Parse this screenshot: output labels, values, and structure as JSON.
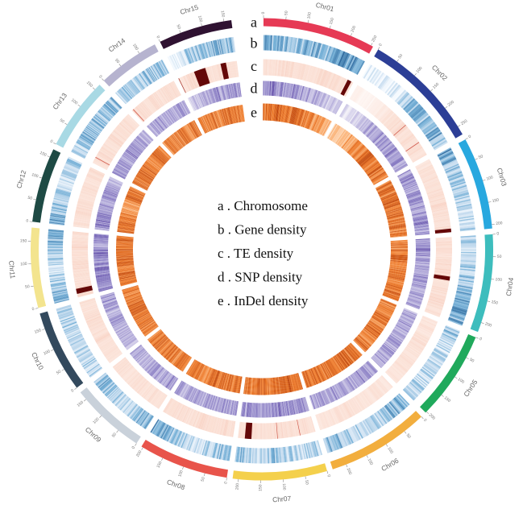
{
  "chart_data": {
    "type": "heatmap",
    "layout": "circular",
    "title": "",
    "legend_placement": "center",
    "track_letters": [
      "a",
      "b",
      "c",
      "d",
      "e"
    ],
    "legend": [
      "a . Chromosome",
      "b . Gene density",
      "c . TE density",
      "d . SNP density",
      "e . InDel density"
    ],
    "tracks": [
      {
        "key": "gene",
        "color_scale": [
          [
            0,
            "#f7fbff"
          ],
          [
            0.35,
            "#c9def0"
          ],
          [
            0.65,
            "#74afd6"
          ],
          [
            1,
            "#2a6499"
          ]
        ]
      },
      {
        "key": "te",
        "color_scale": [
          [
            0,
            "#ffffff"
          ],
          [
            0.3,
            "#fbe0d5"
          ],
          [
            0.55,
            "#f1b09c"
          ],
          [
            0.75,
            "#c8463a"
          ],
          [
            1,
            "#640808"
          ]
        ]
      },
      {
        "key": "snp",
        "color_scale": [
          [
            0,
            "#f3f1f8"
          ],
          [
            0.4,
            "#c3bde2"
          ],
          [
            0.7,
            "#8a7ec4"
          ],
          [
            1,
            "#4a2f96"
          ]
        ]
      },
      {
        "key": "indel",
        "color_scale": [
          [
            0,
            "#fff2e5"
          ],
          [
            0.4,
            "#fbb57b"
          ],
          [
            0.7,
            "#ee7c2d"
          ],
          [
            1,
            "#bb430b"
          ]
        ]
      }
    ],
    "chromosomes": [
      {
        "name": "Chr01",
        "length": 255,
        "color": "#e63a55",
        "ticks": [
          0,
          50,
          100,
          150,
          200,
          250
        ],
        "gene": [
          0.7,
          0.6,
          0.55,
          0.5,
          0.55,
          0.6,
          0.55,
          0.6,
          0.7,
          0.75,
          0.7,
          0.55
        ],
        "te": [
          0.3,
          0.28,
          0.3,
          0.32,
          0.3,
          0.3,
          0.28,
          0.3,
          0.32,
          0.3,
          0.3,
          0.28
        ],
        "snp": [
          0.6,
          0.65,
          0.6,
          0.55,
          0.6,
          0.55,
          0.5,
          0.45,
          0.4,
          0.35,
          0.3,
          0.3
        ],
        "indel": [
          0.7,
          0.75,
          0.8,
          0.75,
          0.7,
          0.75,
          0.7,
          0.65,
          0.6,
          0.55,
          0.45,
          0.4
        ]
      },
      {
        "name": "Chr02",
        "length": 270,
        "color": "#2c3e96",
        "ticks": [
          0,
          50,
          100,
          150,
          200,
          250
        ],
        "gene": [
          0.1,
          0.08,
          0.1,
          0.12,
          0.15,
          0.4,
          0.55,
          0.6,
          0.5,
          0.55,
          0.6,
          0.45
        ],
        "te": [
          0.12,
          0.1,
          0.12,
          0.15,
          0.22,
          0.26,
          0.3,
          0.3,
          0.28,
          0.3,
          0.3,
          0.28
        ],
        "snp": [
          0.15,
          0.2,
          0.25,
          0.35,
          0.45,
          0.5,
          0.55,
          0.5,
          0.55,
          0.6,
          0.55,
          0.5
        ],
        "indel": [
          0.3,
          0.35,
          0.4,
          0.5,
          0.6,
          0.65,
          0.7,
          0.75,
          0.7,
          0.75,
          0.7,
          0.7
        ]
      },
      {
        "name": "Chr03",
        "length": 209,
        "color": "#28a8df",
        "ticks": [
          0,
          50,
          100,
          150,
          200
        ],
        "gene": [
          0.7,
          0.65,
          0.55,
          0.5,
          0.45,
          0.4,
          0.4,
          0.35,
          0.4,
          0.35,
          0.3,
          0.35
        ],
        "te": [
          0.26,
          0.28,
          0.3,
          0.3,
          0.28,
          0.3,
          0.3,
          0.32,
          0.3,
          0.3,
          0.28,
          0.3
        ],
        "snp": [
          0.55,
          0.6,
          0.55,
          0.5,
          0.55,
          0.6,
          0.55,
          0.5,
          0.55,
          0.6,
          0.6,
          0.55
        ],
        "indel": [
          0.7,
          0.75,
          0.7,
          0.75,
          0.8,
          0.75,
          0.7,
          0.75,
          0.7,
          0.75,
          0.7,
          0.7
        ]
      },
      {
        "name": "Chr04",
        "length": 222,
        "color": "#3dbdbd",
        "ticks": [
          0,
          50,
          100,
          150,
          200
        ],
        "gene": [
          0.35,
          0.3,
          0.3,
          0.35,
          0.4,
          0.45,
          0.5,
          0.55,
          0.6,
          0.65,
          0.7,
          0.6
        ],
        "te": [
          0.3,
          0.3,
          0.28,
          0.3,
          0.32,
          0.3,
          0.28,
          0.3,
          0.3,
          0.32,
          0.3,
          0.28
        ],
        "snp": [
          0.6,
          0.65,
          0.6,
          0.55,
          0.5,
          0.55,
          0.6,
          0.55,
          0.5,
          0.5,
          0.45,
          0.5
        ],
        "indel": [
          0.75,
          0.7,
          0.75,
          0.8,
          0.75,
          0.7,
          0.75,
          0.7,
          0.65,
          0.7,
          0.75,
          0.7
        ]
      },
      {
        "name": "Chr05",
        "length": 203,
        "color": "#20a95c",
        "ticks": [
          0,
          50,
          100,
          150,
          200
        ],
        "gene": [
          0.5,
          0.45,
          0.3,
          0.3,
          0.35,
          0.3,
          0.3,
          0.35,
          0.3,
          0.35,
          0.4,
          0.35
        ],
        "te": [
          0.26,
          0.28,
          0.26,
          0.28,
          0.3,
          0.28,
          0.26,
          0.28,
          0.3,
          0.28,
          0.26,
          0.28
        ],
        "snp": [
          0.45,
          0.5,
          0.55,
          0.5,
          0.45,
          0.5,
          0.55,
          0.5,
          0.5,
          0.55,
          0.5,
          0.45
        ],
        "indel": [
          0.7,
          0.65,
          0.7,
          0.75,
          0.7,
          0.65,
          0.7,
          0.75,
          0.7,
          0.65,
          0.7,
          0.7
        ]
      },
      {
        "name": "Chr06",
        "length": 232,
        "color": "#f2ae3e",
        "ticks": [
          0,
          50,
          100,
          150,
          200
        ],
        "gene": [
          0.6,
          0.6,
          0.55,
          0.45,
          0.35,
          0.3,
          0.3,
          0.35,
          0.4,
          0.5,
          0.55,
          0.6
        ],
        "te": [
          0.25,
          0.26,
          0.28,
          0.26,
          0.25,
          0.26,
          0.28,
          0.3,
          0.28,
          0.26,
          0.25,
          0.26
        ],
        "snp": [
          0.5,
          0.55,
          0.6,
          0.55,
          0.5,
          0.45,
          0.5,
          0.55,
          0.5,
          0.45,
          0.5,
          0.55
        ],
        "indel": [
          0.75,
          0.7,
          0.75,
          0.8,
          0.75,
          0.7,
          0.75,
          0.7,
          0.75,
          0.8,
          0.75,
          0.7
        ]
      },
      {
        "name": "Chr07",
        "length": 213,
        "color": "#f4d04c",
        "ticks": [
          0,
          50,
          100,
          150,
          200
        ],
        "gene": [
          0.35,
          0.4,
          0.35,
          0.35,
          0.4,
          0.5,
          0.5,
          0.45,
          0.4,
          0.35,
          0.5,
          0.55
        ],
        "te": [
          0.28,
          0.3,
          0.3,
          0.28,
          0.3,
          0.32,
          0.3,
          0.28,
          0.3,
          0.3,
          0.32,
          0.3
        ],
        "snp": [
          0.6,
          0.65,
          0.6,
          0.55,
          0.6,
          0.65,
          0.6,
          0.55,
          0.5,
          0.55,
          0.6,
          0.55
        ],
        "indel": [
          0.7,
          0.75,
          0.8,
          0.75,
          0.7,
          0.75,
          0.7,
          0.75,
          0.8,
          0.75,
          0.7,
          0.75
        ]
      },
      {
        "name": "Chr08",
        "length": 204,
        "color": "#e8544b",
        "ticks": [
          0,
          50,
          100,
          150,
          200
        ],
        "gene": [
          0.6,
          0.5,
          0.4,
          0.35,
          0.3,
          0.3,
          0.35,
          0.35,
          0.4,
          0.5,
          0.6,
          0.65
        ],
        "te": [
          0.3,
          0.32,
          0.3,
          0.28,
          0.3,
          0.32,
          0.3,
          0.28,
          0.3,
          0.3,
          0.28,
          0.3
        ],
        "snp": [
          0.55,
          0.5,
          0.55,
          0.6,
          0.55,
          0.5,
          0.45,
          0.5,
          0.55,
          0.5,
          0.45,
          0.5
        ],
        "indel": [
          0.75,
          0.7,
          0.75,
          0.7,
          0.75,
          0.8,
          0.75,
          0.7,
          0.65,
          0.7,
          0.75,
          0.7
        ]
      },
      {
        "name": "Chr09",
        "length": 170,
        "color": "#c9d1da",
        "ticks": [
          0,
          50,
          100,
          150
        ],
        "gene": [
          0.6,
          0.55,
          0.5,
          0.45,
          0.4,
          0.35,
          0.4,
          0.45,
          0.4,
          0.5,
          0.55,
          0.5
        ],
        "te": [
          0.26,
          0.28,
          0.3,
          0.28,
          0.26,
          0.28,
          0.3,
          0.28,
          0.26,
          0.28,
          0.3,
          0.28
        ],
        "snp": [
          0.5,
          0.55,
          0.5,
          0.45,
          0.5,
          0.55,
          0.5,
          0.45,
          0.4,
          0.45,
          0.5,
          0.45
        ],
        "indel": [
          0.7,
          0.75,
          0.7,
          0.65,
          0.7,
          0.75,
          0.7,
          0.65,
          0.7,
          0.75,
          0.7,
          0.7
        ]
      },
      {
        "name": "Chr10",
        "length": 186,
        "color": "#33495d",
        "ticks": [
          0,
          50,
          100,
          150
        ],
        "gene": [
          0.35,
          0.3,
          0.35,
          0.4,
          0.35,
          0.3,
          0.3,
          0.35,
          0.45,
          0.4,
          0.35,
          0.5
        ],
        "te": [
          0.28,
          0.3,
          0.28,
          0.3,
          0.32,
          0.3,
          0.28,
          0.3,
          0.32,
          0.3,
          0.28,
          0.3
        ],
        "snp": [
          0.45,
          0.5,
          0.45,
          0.4,
          0.45,
          0.5,
          0.55,
          0.5,
          0.45,
          0.5,
          0.55,
          0.5
        ],
        "indel": [
          0.7,
          0.65,
          0.7,
          0.75,
          0.7,
          0.75,
          0.8,
          0.75,
          0.7,
          0.65,
          0.7,
          0.75
        ]
      },
      {
        "name": "Chr11",
        "length": 181,
        "color": "#f3e48e",
        "ticks": [
          0,
          50,
          100,
          150
        ],
        "gene": [
          0.6,
          0.55,
          0.45,
          0.4,
          0.35,
          0.3,
          0.35,
          0.4,
          0.45,
          0.5,
          0.55,
          0.6
        ],
        "te": [
          0.3,
          0.32,
          0.3,
          0.28,
          0.3,
          0.32,
          0.3,
          0.28,
          0.3,
          0.32,
          0.3,
          0.3
        ],
        "snp": [
          0.6,
          0.65,
          0.6,
          0.65,
          0.7,
          0.65,
          0.6,
          0.65,
          0.6,
          0.55,
          0.6,
          0.65
        ],
        "indel": [
          0.75,
          0.8,
          0.75,
          0.7,
          0.75,
          0.8,
          0.75,
          0.7,
          0.75,
          0.8,
          0.75,
          0.7
        ]
      },
      {
        "name": "Chr12",
        "length": 169,
        "color": "#1e4a44",
        "ticks": [
          0,
          50,
          100,
          150
        ],
        "gene": [
          0.65,
          0.6,
          0.55,
          0.5,
          0.45,
          0.4,
          0.35,
          0.35,
          0.3,
          0.35,
          0.4,
          0.45
        ],
        "te": [
          0.3,
          0.28,
          0.3,
          0.32,
          0.3,
          0.28,
          0.3,
          0.32,
          0.3,
          0.28,
          0.3,
          0.3
        ],
        "snp": [
          0.6,
          0.65,
          0.7,
          0.65,
          0.6,
          0.55,
          0.6,
          0.65,
          0.6,
          0.55,
          0.5,
          0.45
        ],
        "indel": [
          0.7,
          0.75,
          0.8,
          0.75,
          0.7,
          0.5,
          0.45,
          0.55,
          0.7,
          0.75,
          0.7,
          0.75
        ]
      },
      {
        "name": "Chr13",
        "length": 165,
        "color": "#a8d9e4",
        "ticks": [
          0,
          50,
          100,
          150
        ],
        "gene": [
          0.35,
          0.4,
          0.45,
          0.5,
          0.55,
          0.55,
          0.5,
          0.5,
          0.45,
          0.5,
          0.55,
          0.5
        ],
        "te": [
          0.28,
          0.3,
          0.32,
          0.3,
          0.28,
          0.3,
          0.32,
          0.3,
          0.28,
          0.3,
          0.3,
          0.28
        ],
        "snp": [
          0.55,
          0.6,
          0.55,
          0.5,
          0.55,
          0.6,
          0.65,
          0.6,
          0.55,
          0.5,
          0.45,
          0.4
        ],
        "indel": [
          0.75,
          0.7,
          0.75,
          0.8,
          0.75,
          0.7,
          0.65,
          0.6,
          0.7,
          0.75,
          0.7,
          0.65
        ]
      },
      {
        "name": "Chr14",
        "length": 140,
        "color": "#b6b3cf",
        "ticks": [
          0,
          50,
          100
        ],
        "gene": [
          0.4,
          0.45,
          0.5,
          0.4,
          0.35,
          0.35,
          0.4,
          0.45,
          0.5,
          0.55,
          0.5,
          0.45
        ],
        "te": [
          0.3,
          0.32,
          0.3,
          0.28,
          0.3,
          0.32,
          0.3,
          0.28,
          0.3,
          0.32,
          0.3,
          0.28
        ],
        "snp": [
          0.45,
          0.5,
          0.55,
          0.5,
          0.45,
          0.5,
          0.55,
          0.5,
          0.45,
          0.5,
          0.55,
          0.5
        ],
        "indel": [
          0.65,
          0.7,
          0.75,
          0.7,
          0.65,
          0.7,
          0.75,
          0.7,
          0.65,
          0.6,
          0.7,
          0.75
        ]
      },
      {
        "name": "Chr15",
        "length": 167,
        "color": "#2f1231",
        "ticks": [
          0,
          50,
          100,
          150
        ],
        "gene": [
          0.1,
          0.15,
          0.2,
          0.45,
          0.5,
          0.55,
          0.5,
          0.55,
          0.6,
          0.55,
          0.5,
          0.55
        ],
        "te": [
          0.28,
          0.3,
          0.32,
          0.3,
          0.3,
          0.32,
          0.3,
          0.28,
          0.3,
          0.32,
          0.3,
          0.3
        ],
        "snp": [
          0.3,
          0.35,
          0.4,
          0.45,
          0.5,
          0.55,
          0.6,
          0.55,
          0.5,
          0.55,
          0.6,
          0.55
        ],
        "indel": [
          0.6,
          0.65,
          0.7,
          0.75,
          0.7,
          0.65,
          0.7,
          0.75,
          0.8,
          0.75,
          0.7,
          0.65
        ]
      }
    ],
    "te_hotspots": [
      {
        "chr": "Chr15",
        "start": 1,
        "end": 2.5,
        "value": 0.85
      },
      {
        "chr": "Chr15",
        "start": 47,
        "end": 79,
        "value": 1
      },
      {
        "chr": "Chr15",
        "start": 122,
        "end": 137,
        "value": 1
      },
      {
        "chr": "Chr01",
        "start": 238,
        "end": 249,
        "value": 1
      },
      {
        "chr": "Chr02",
        "start": 170,
        "end": 172,
        "value": 0.7
      },
      {
        "chr": "Chr02",
        "start": 229,
        "end": 231,
        "value": 0.7
      },
      {
        "chr": "Chr03",
        "start": 199,
        "end": 209,
        "value": 1
      },
      {
        "chr": "Chr04",
        "start": 108,
        "end": 119,
        "value": 1
      },
      {
        "chr": "Chr07",
        "start": 42,
        "end": 43.5,
        "value": 0.72
      },
      {
        "chr": "Chr07",
        "start": 104,
        "end": 105.5,
        "value": 0.72
      },
      {
        "chr": "Chr07",
        "start": 176,
        "end": 194,
        "value": 1
      },
      {
        "chr": "Chr11",
        "start": 10,
        "end": 24,
        "value": 1
      },
      {
        "chr": "Chr13",
        "start": 16,
        "end": 18,
        "value": 0.7
      },
      {
        "chr": "Chr14",
        "start": 4,
        "end": 6,
        "value": 0.7
      }
    ]
  }
}
